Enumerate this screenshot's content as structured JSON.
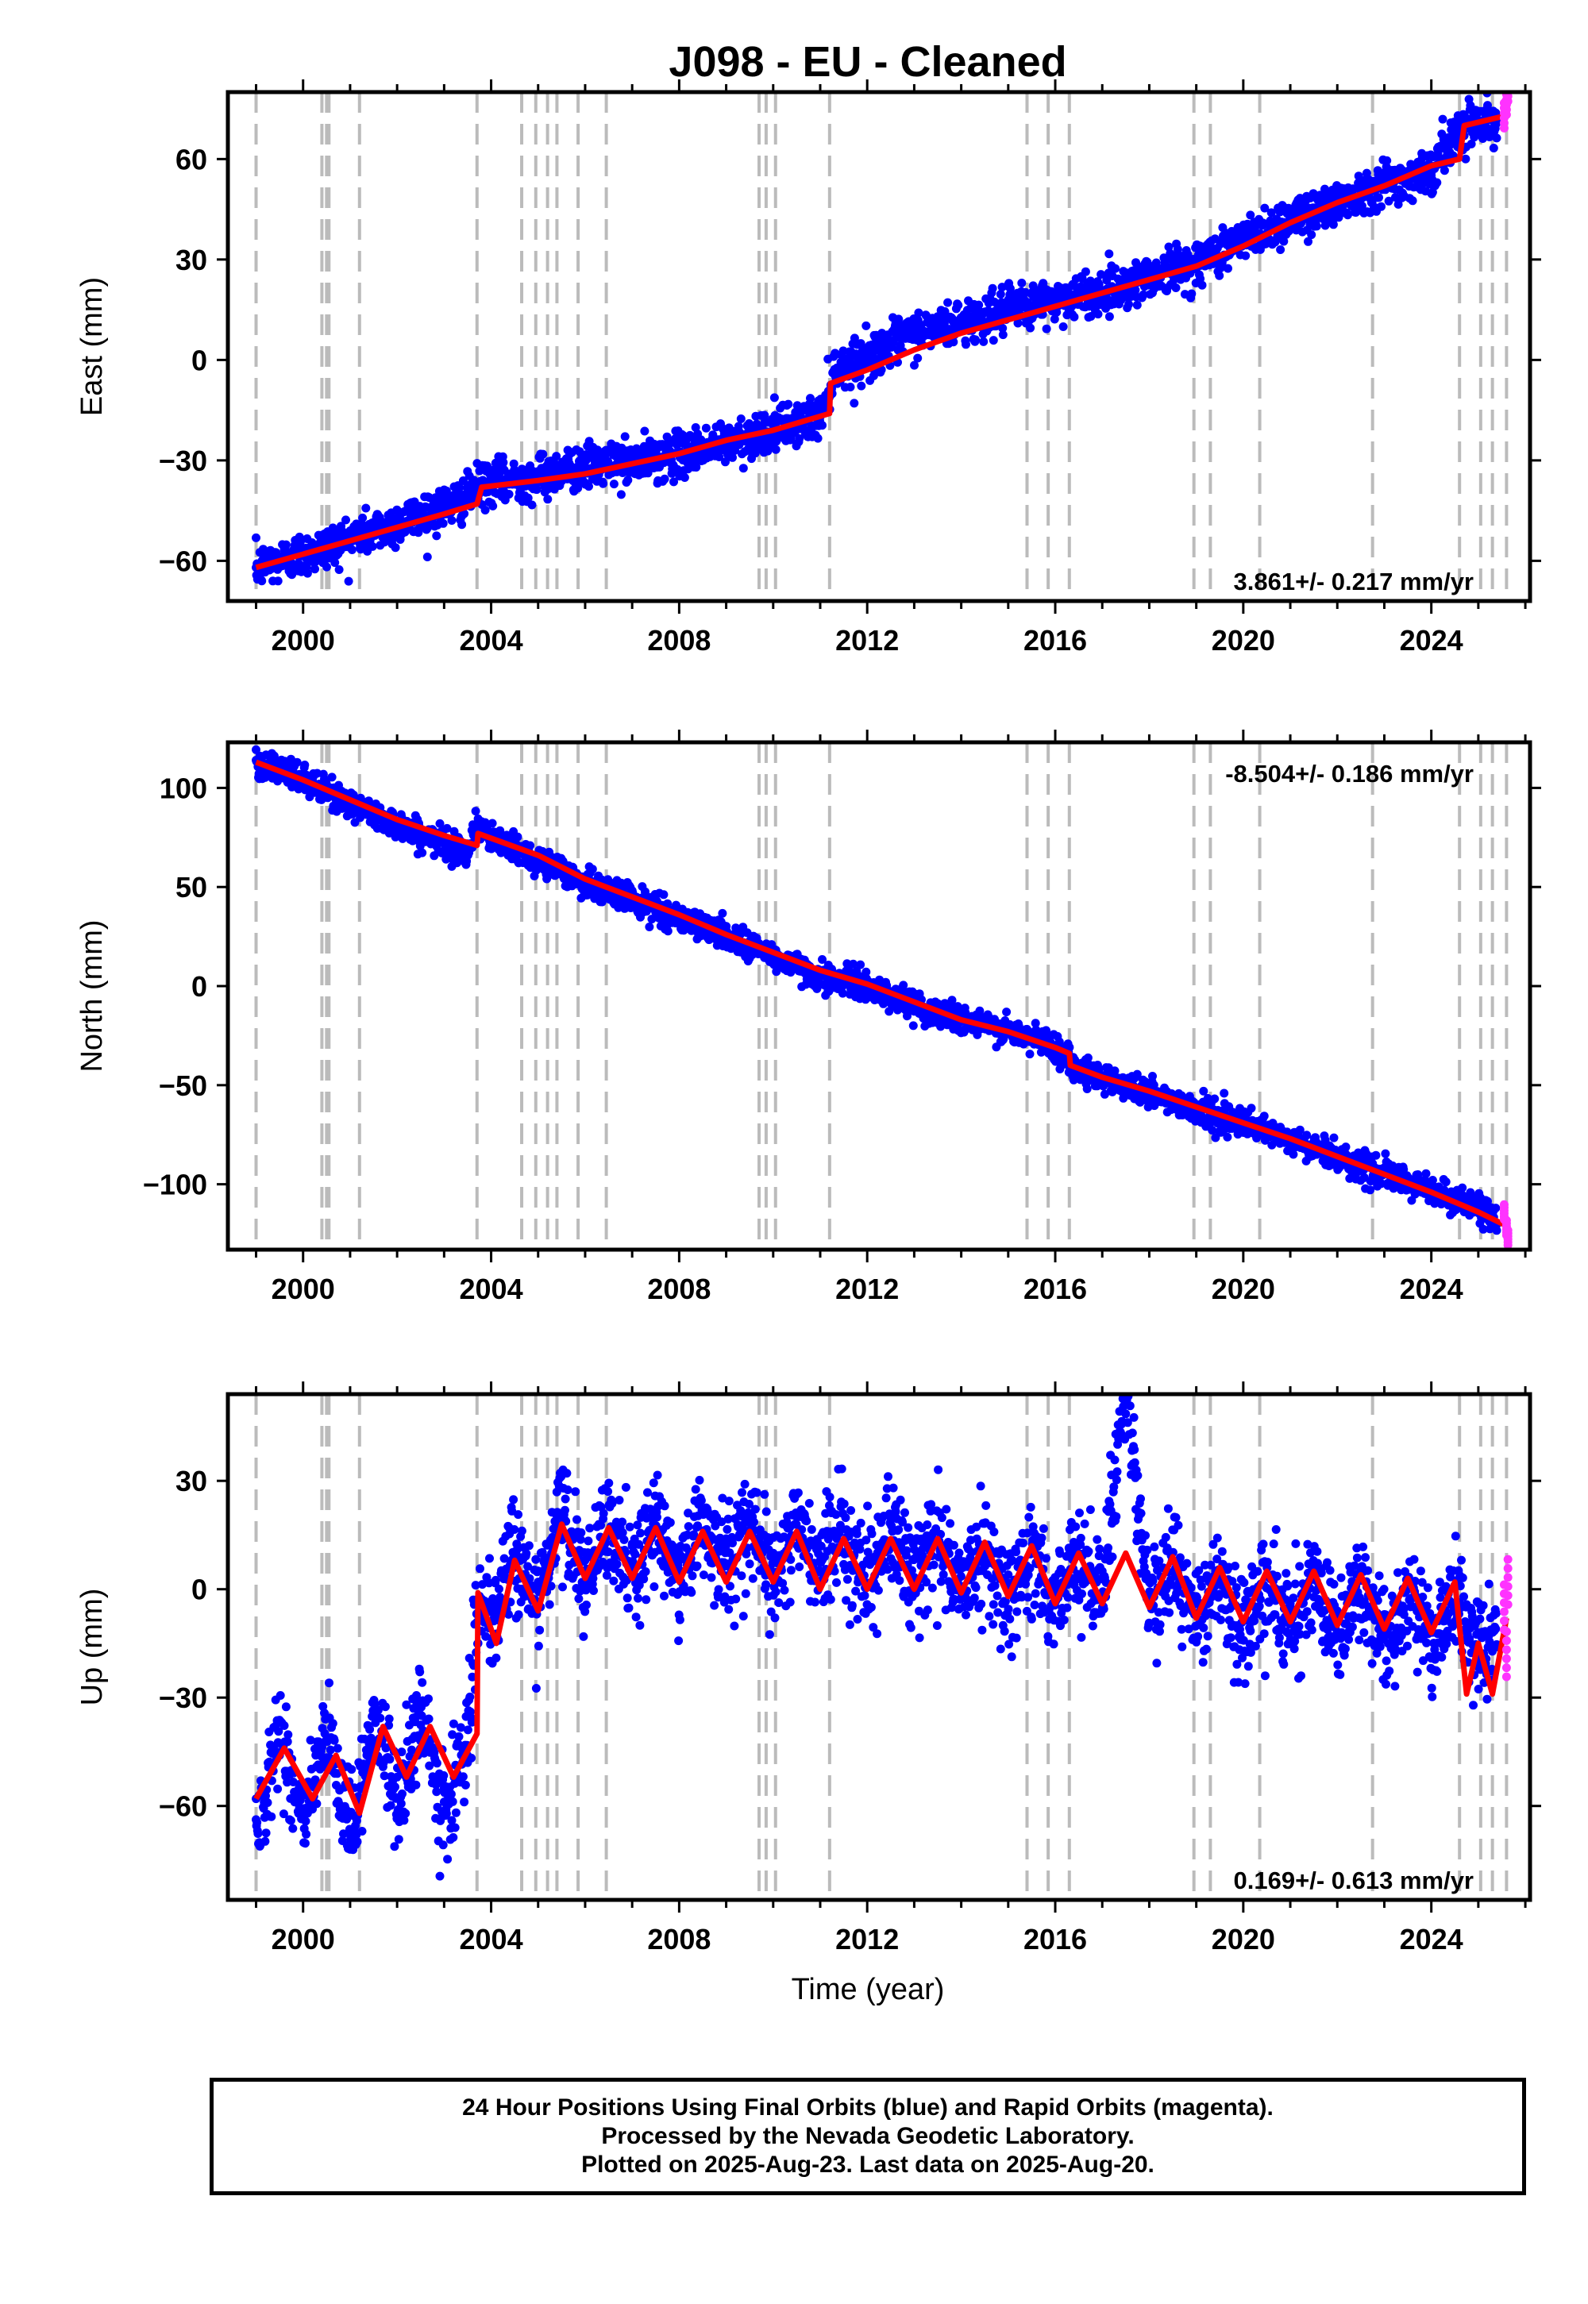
{
  "title": "J098  - EU - Cleaned",
  "x_axis_label": "Time (year)",
  "footer": {
    "line1": "24 Hour Positions Using Final Orbits (blue) and Rapid Orbits (magenta).",
    "line2": "Processed by the Nevada Geodetic Laboratory.",
    "line3": "Plotted on 2025-Aug-23. Last data on 2025-Aug-20."
  },
  "colors": {
    "final_orbits": "#0000ff",
    "rapid_orbits": "#ff33ff",
    "model_fit": "#ff0000",
    "event_lines": "#bbbbbb"
  },
  "chart_data": [
    {
      "type": "scatter",
      "component": "east",
      "ylabel": "East (mm)",
      "xlim": [
        1998.4,
        2026.1
      ],
      "ylim": [
        -72,
        80
      ],
      "yticks": [
        -60,
        -30,
        0,
        30,
        60
      ],
      "xticks": [
        2000,
        2004,
        2008,
        2012,
        2016,
        2020,
        2024
      ],
      "rate_label": "3.861+/- 0.217 mm/yr",
      "rate_position": "bottom-right",
      "grid": false,
      "series": [
        {
          "name": "Final Orbits",
          "x": [
            1999.0,
            1999.5,
            2000.0,
            2000.5,
            2001.0,
            2001.5,
            2002.0,
            2002.5,
            2003.0,
            2003.5,
            2003.8,
            2004.5,
            2005.0,
            2005.5,
            2006.0,
            2006.5,
            2007.0,
            2008.0,
            2009.0,
            2010.0,
            2011.0,
            2011.3,
            2012.0,
            2013.0,
            2014.0,
            2015.0,
            2016.0,
            2017.0,
            2018.0,
            2019.0,
            2020.0,
            2021.0,
            2022.0,
            2023.0,
            2024.0,
            2024.6,
            2025.0,
            2025.4
          ],
          "y": [
            -62,
            -60,
            -58,
            -56,
            -53,
            -51,
            -49,
            -46,
            -44,
            -41,
            -37,
            -36,
            -35,
            -33,
            -32,
            -31,
            -31,
            -28,
            -25,
            -21,
            -17,
            -3,
            1,
            8,
            11,
            15,
            18,
            20,
            25,
            29,
            36,
            42,
            47,
            53,
            56,
            70,
            71,
            72
          ]
        },
        {
          "name": "Rapid Orbits",
          "x": [
            2025.55,
            2025.6,
            2025.63
          ],
          "y": [
            73,
            77,
            81
          ]
        }
      ],
      "model": {
        "x": [
          1999.0,
          2000.0,
          2001.0,
          2002.0,
          2003.0,
          2003.7,
          2003.8,
          2005.0,
          2006.0,
          2007.0,
          2008.0,
          2009.0,
          2010.0,
          2011.2,
          2011.22,
          2012.0,
          2013.0,
          2014.0,
          2015.0,
          2016.0,
          2017.0,
          2018.0,
          2019.0,
          2020.0,
          2021.0,
          2022.0,
          2023.0,
          2024.0,
          2024.6,
          2024.7,
          2025.6
        ],
        "y": [
          -62,
          -58,
          -54,
          -50,
          -46,
          -43,
          -38,
          -36,
          -34,
          -31,
          -28,
          -24,
          -21,
          -16,
          -7,
          -3,
          3,
          8,
          12,
          16,
          20,
          24,
          28,
          34,
          41,
          47,
          52,
          58,
          60,
          70,
          73
        ]
      },
      "event_years": [
        1999.0,
        2000.4,
        2000.5,
        2000.55,
        2001.2,
        2003.7,
        2004.65,
        2004.95,
        2005.2,
        2005.4,
        2005.85,
        2006.45,
        2009.7,
        2009.85,
        2010.05,
        2011.2,
        2015.4,
        2015.85,
        2016.3,
        2018.95,
        2019.3,
        2020.35,
        2022.75,
        2024.6,
        2025.05,
        2025.3,
        2025.6
      ]
    },
    {
      "type": "scatter",
      "component": "north",
      "ylabel": "North (mm)",
      "xlim": [
        1998.4,
        2026.1
      ],
      "ylim": [
        -133,
        123
      ],
      "yticks": [
        -100,
        -50,
        0,
        50,
        100
      ],
      "xticks": [
        2000,
        2004,
        2008,
        2012,
        2016,
        2020,
        2024
      ],
      "rate_label": "-8.504+/- 0.186 mm/yr",
      "rate_position": "top-right",
      "grid": false,
      "series": [
        {
          "name": "Final Orbits",
          "x": [
            1999.0,
            1999.5,
            2000.0,
            2000.5,
            2001.0,
            2001.5,
            2002.0,
            2002.5,
            2003.0,
            2003.5,
            2003.7,
            2004.0,
            2005.0,
            2006.0,
            2007.0,
            2008.0,
            2009.0,
            2010.0,
            2011.0,
            2012.0,
            2013.0,
            2014.0,
            2015.0,
            2016.0,
            2016.4,
            2017.0,
            2018.0,
            2019.0,
            2020.0,
            2021.0,
            2022.0,
            2023.0,
            2024.0,
            2025.0,
            2025.4
          ],
          "y": [
            114,
            108,
            104,
            98,
            92,
            86,
            82,
            76,
            72,
            68,
            80,
            74,
            64,
            52,
            44,
            34,
            26,
            15,
            5,
            0,
            -10,
            -17,
            -23,
            -30,
            -40,
            -46,
            -54,
            -62,
            -70,
            -78,
            -86,
            -95,
            -103,
            -112,
            -120
          ]
        },
        {
          "name": "Rapid Orbits",
          "x": [
            2025.55,
            2025.6,
            2025.63
          ],
          "y": [
            -114,
            -122,
            -127
          ]
        }
      ],
      "model": {
        "x": [
          1999.0,
          2000.0,
          2001.0,
          2002.0,
          2003.0,
          2003.7,
          2003.72,
          2005.0,
          2006.0,
          2007.0,
          2008.0,
          2009.0,
          2010.0,
          2011.0,
          2012.0,
          2013.0,
          2014.0,
          2015.0,
          2016.0,
          2016.3,
          2016.32,
          2017.0,
          2018.0,
          2019.0,
          2020.0,
          2021.0,
          2022.0,
          2023.0,
          2024.0,
          2025.0,
          2025.6
        ],
        "y": [
          113,
          104,
          94,
          84,
          76,
          71,
          77,
          66,
          54,
          45,
          36,
          26,
          17,
          8,
          1,
          -8,
          -17,
          -23,
          -31,
          -34,
          -40,
          -46,
          -53,
          -61,
          -69,
          -77,
          -86,
          -95,
          -104,
          -114,
          -121
        ]
      },
      "event_years": [
        1999.0,
        2000.4,
        2000.5,
        2000.55,
        2001.2,
        2003.7,
        2004.65,
        2004.95,
        2005.2,
        2005.4,
        2005.85,
        2006.45,
        2009.7,
        2009.85,
        2010.05,
        2011.2,
        2015.4,
        2015.85,
        2016.3,
        2018.95,
        2019.3,
        2020.35,
        2022.75,
        2024.6,
        2025.05,
        2025.3,
        2025.6
      ]
    },
    {
      "type": "scatter",
      "component": "up",
      "ylabel": "Up (mm)",
      "xlim": [
        1998.4,
        2026.1
      ],
      "ylim": [
        -86,
        54
      ],
      "yticks": [
        -60,
        -30,
        0,
        30
      ],
      "xticks": [
        2000,
        2004,
        2008,
        2012,
        2016,
        2020,
        2024
      ],
      "rate_label": "0.169+/- 0.613 mm/yr",
      "rate_position": "bottom-right",
      "grid": false,
      "series": [
        {
          "name": "Final Orbits",
          "x": [
            1999.0,
            1999.5,
            2000.0,
            2000.5,
            2001.0,
            2001.5,
            2002.0,
            2002.5,
            2003.0,
            2003.5,
            2003.75,
            2004.0,
            2004.5,
            2005.0,
            2005.5,
            2006.0,
            2007.0,
            2008.0,
            2009.0,
            2010.0,
            2011.0,
            2012.0,
            2013.0,
            2014.0,
            2015.0,
            2016.0,
            2017.0,
            2017.5,
            2018.0,
            2019.0,
            2020.0,
            2021.0,
            2022.0,
            2023.0,
            2024.0,
            2025.0,
            2025.4
          ],
          "y": [
            -58,
            -46,
            -57,
            -48,
            -62,
            -42,
            -52,
            -42,
            -55,
            -48,
            -2,
            -6,
            6,
            2,
            16,
            8,
            12,
            10,
            14,
            10,
            12,
            8,
            11,
            6,
            4,
            2,
            5,
            52,
            2,
            -2,
            -5,
            -4,
            -6,
            -7,
            -9,
            -12,
            -16
          ]
        },
        {
          "name": "Rapid Orbits",
          "x": [
            2025.55,
            2025.6,
            2025.63
          ],
          "y": [
            -5,
            -18,
            2
          ]
        }
      ],
      "model": {
        "x": [
          1999.0,
          1999.6,
          2000.2,
          2000.7,
          2001.2,
          2001.7,
          2002.2,
          2002.7,
          2003.2,
          2003.7,
          2003.72,
          2004.5,
          2005.5,
          2006.5,
          2007.5,
          2008.5,
          2009.5,
          2010.5,
          2011.5,
          2012.5,
          2013.5,
          2014.5,
          2015.5,
          2016.5,
          2017.5,
          2018.5,
          2019.5,
          2020.5,
          2021.5,
          2022.5,
          2023.5,
          2024.5,
          2025.0,
          2025.6
        ],
        "y": [
          -58,
          -44,
          -58,
          -46,
          -62,
          -38,
          -52,
          -38,
          -52,
          -40,
          -1,
          8,
          18,
          17,
          17,
          16,
          16,
          16,
          14,
          14,
          14,
          13,
          12,
          10,
          10,
          9,
          6,
          5,
          5,
          4,
          3,
          2,
          -15,
          -8
        ]
      },
      "event_years": [
        1999.0,
        2000.4,
        2000.5,
        2000.55,
        2001.2,
        2003.7,
        2004.65,
        2004.95,
        2005.2,
        2005.4,
        2005.85,
        2006.45,
        2009.7,
        2009.85,
        2010.05,
        2011.2,
        2015.4,
        2015.85,
        2016.3,
        2018.95,
        2019.3,
        2020.35,
        2022.75,
        2024.6,
        2025.05,
        2025.3,
        2025.6
      ]
    }
  ]
}
